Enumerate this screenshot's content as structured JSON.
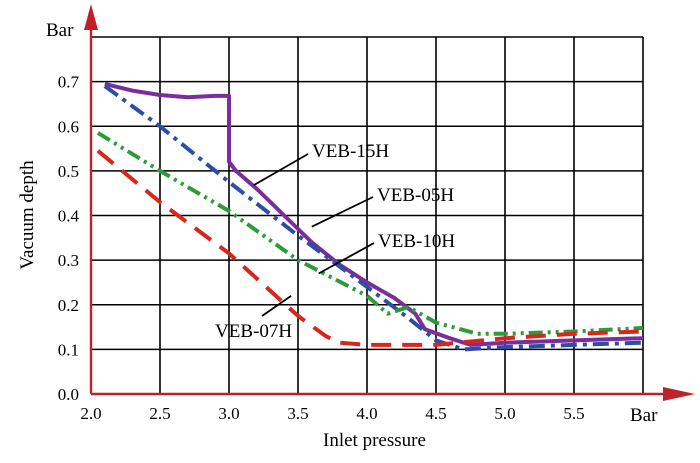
{
  "chart_data": {
    "type": "line",
    "title": "",
    "xlabel": "Inlet pressure",
    "ylabel": "Vacuum depth",
    "x_unit": "Bar",
    "y_unit": "Bar",
    "xlim": [
      2.0,
      6.0
    ],
    "ylim": [
      0.0,
      0.8
    ],
    "x_ticks": [
      "2.0",
      "2.5",
      "3.0",
      "3.5",
      "4.0",
      "4.5",
      "5.0",
      "5.5"
    ],
    "y_ticks": [
      "0.0",
      "0.1",
      "0.2",
      "0.3",
      "0.4",
      "0.5",
      "0.6",
      "0.7"
    ],
    "grid": true,
    "axis_color": "#c0202a",
    "series": [
      {
        "name": "VEB-15H",
        "color": "#7b2d9e",
        "dash": "solid",
        "x": [
          2.1,
          2.3,
          2.5,
          2.7,
          2.9,
          3.0,
          3.0,
          3.05,
          3.2,
          3.4,
          3.6,
          3.8,
          4.0,
          4.2,
          4.35,
          4.42,
          4.6,
          4.75,
          5.0,
          5.5,
          6.0
        ],
        "y": [
          0.695,
          0.68,
          0.67,
          0.665,
          0.668,
          0.668,
          0.52,
          0.5,
          0.46,
          0.4,
          0.34,
          0.29,
          0.25,
          0.215,
          0.18,
          0.145,
          0.125,
          0.11,
          0.115,
          0.12,
          0.125
        ]
      },
      {
        "name": "VEB-05H",
        "color": "#2c4fa3",
        "dash": "dash-dot",
        "x": [
          2.1,
          2.5,
          3.0,
          3.5,
          4.0,
          4.3,
          4.5,
          4.7,
          5.0,
          5.5,
          6.0
        ],
        "y": [
          0.69,
          0.6,
          0.475,
          0.355,
          0.24,
          0.17,
          0.12,
          0.1,
          0.105,
          0.11,
          0.115
        ]
      },
      {
        "name": "VEB-10H",
        "color": "#2e9b3a",
        "dash": "dash-dot-dot",
        "x": [
          2.05,
          2.5,
          3.0,
          3.5,
          4.0,
          4.15,
          4.3,
          4.5,
          4.8,
          5.0,
          5.5,
          6.0
        ],
        "y": [
          0.585,
          0.5,
          0.41,
          0.3,
          0.22,
          0.18,
          0.195,
          0.16,
          0.135,
          0.135,
          0.14,
          0.148
        ]
      },
      {
        "name": "VEB-07H",
        "color": "#d9261c",
        "dash": "dash",
        "x": [
          2.05,
          2.5,
          3.0,
          3.5,
          3.7,
          3.8,
          4.0,
          4.5,
          5.0,
          5.5,
          6.0
        ],
        "y": [
          0.545,
          0.43,
          0.315,
          0.175,
          0.13,
          0.115,
          0.11,
          0.11,
          0.125,
          0.135,
          0.14
        ]
      }
    ],
    "annotations": [
      {
        "text": "VEB-15H",
        "series": "VEB-15H"
      },
      {
        "text": "VEB-05H",
        "series": "VEB-05H"
      },
      {
        "text": "VEB-10H",
        "series": "VEB-10H"
      },
      {
        "text": "VEB-07H",
        "series": "VEB-07H"
      }
    ]
  }
}
